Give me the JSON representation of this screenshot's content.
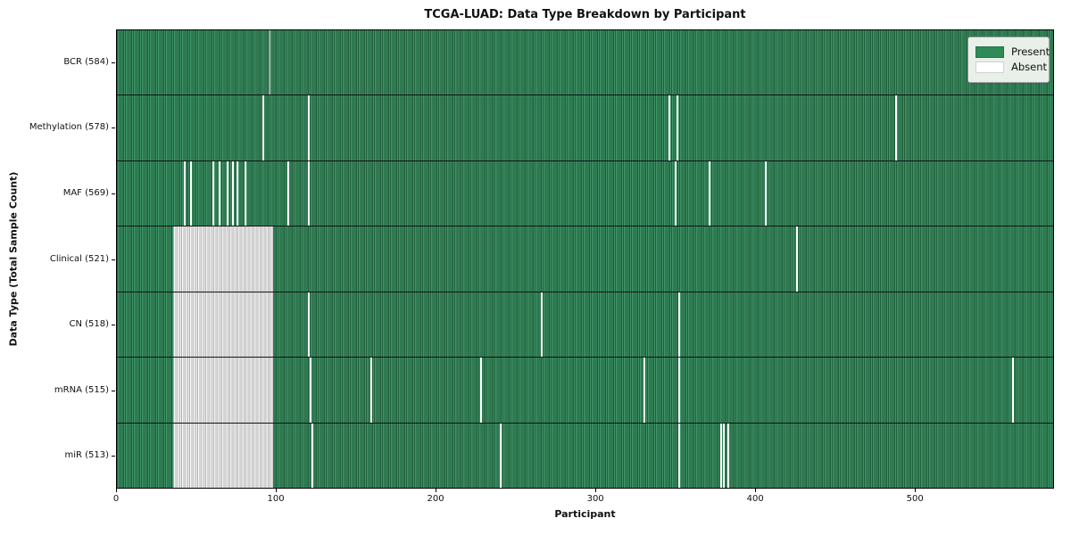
{
  "chart_data": {
    "type": "heatmap",
    "title": "TCGA-LUAD: Data Type Breakdown by Participant",
    "xlabel": "Participant",
    "ylabel": "Data Type (Total Sample Count)",
    "xlim": [
      0,
      587
    ],
    "xticks": [
      0,
      100,
      200,
      300,
      400,
      500
    ],
    "grid": false,
    "colors": {
      "present": "#2e8b57",
      "present_stripe_dark": "#205e3b",
      "present_stripe_light": "#40956a",
      "absent": "#ffffff",
      "absent_stripe": "#ababab",
      "gray_artifact": "#a5a5a5"
    },
    "legend": {
      "position": "upper right",
      "entries": [
        {
          "label": "Present",
          "color": "#2e8b57"
        },
        {
          "label": "Absent",
          "color": "#ffffff"
        }
      ]
    },
    "rows": [
      {
        "label": "BCR (584)",
        "data_type": "BCR",
        "total_samples": 584,
        "absent_blocks": [],
        "absent_singles": [],
        "gray_marks": [
          95
        ]
      },
      {
        "label": "Methylation (578)",
        "data_type": "Methylation",
        "total_samples": 578,
        "absent_blocks": [],
        "absent_singles": [
          91,
          120,
          346,
          351,
          488
        ],
        "gray_marks": []
      },
      {
        "label": "MAF (569)",
        "data_type": "MAF",
        "total_samples": 569,
        "absent_blocks": [],
        "absent_singles": [
          42,
          46,
          60,
          64,
          69,
          72,
          75,
          80,
          107,
          120,
          350,
          371,
          406
        ],
        "gray_marks": []
      },
      {
        "label": "Clinical (521)",
        "data_type": "Clinical",
        "total_samples": 521,
        "absent_blocks": [
          [
            35,
            98
          ]
        ],
        "absent_singles": [
          426
        ],
        "gray_marks": []
      },
      {
        "label": "CN (518)",
        "data_type": "CN",
        "total_samples": 518,
        "absent_blocks": [
          [
            35,
            98
          ]
        ],
        "absent_singles": [
          120,
          266,
          352
        ],
        "gray_marks": []
      },
      {
        "label": "mRNA (515)",
        "data_type": "mRNA",
        "total_samples": 515,
        "absent_blocks": [
          [
            35,
            98
          ]
        ],
        "absent_singles": [
          121,
          159,
          228,
          330,
          352,
          561
        ],
        "gray_marks": []
      },
      {
        "label": "miR (513)",
        "data_type": "miR",
        "total_samples": 513,
        "absent_blocks": [
          [
            35,
            98
          ]
        ],
        "absent_singles": [
          122,
          240,
          352,
          378,
          380,
          383
        ],
        "gray_marks": []
      }
    ]
  }
}
